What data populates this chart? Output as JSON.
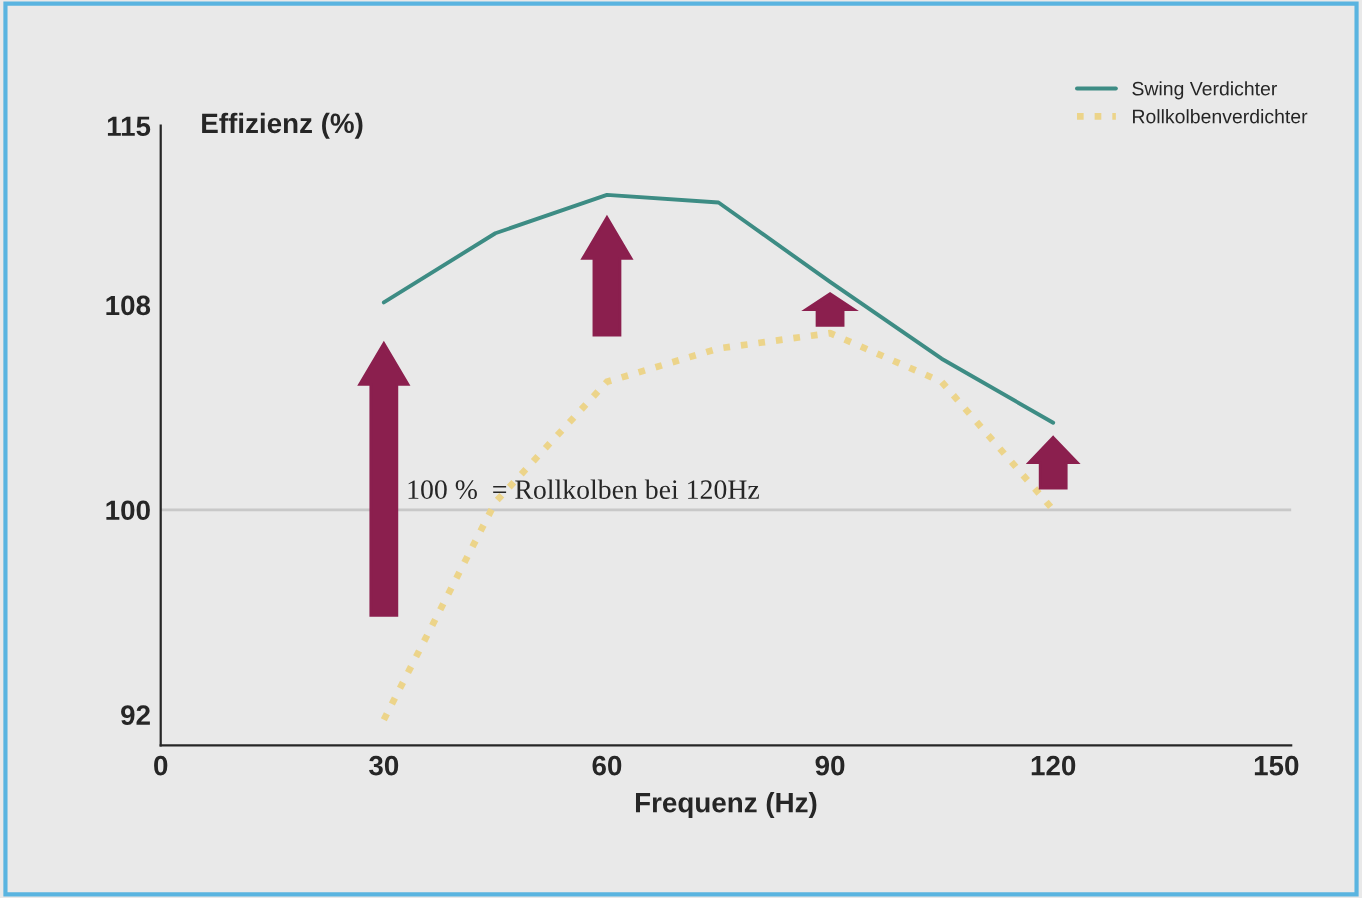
{
  "chart_data": {
    "type": "line",
    "ylabel": "Effizienz (%)",
    "xlabel": "Frequenz (Hz)",
    "x": [
      30,
      45,
      60,
      75,
      90,
      105,
      120
    ],
    "series": [
      {
        "name": "Swing Verdichter",
        "color": "#3d8c84",
        "values": [
          108.1,
          110.8,
          112.3,
          112,
          108.9,
          105.9,
          103.4
        ],
        "line_style": "solid"
      },
      {
        "name": "Rollkolbenverdichter",
        "color": "#ecd48a",
        "values": [
          91.8,
          100.3,
          105,
          106.3,
          106.9,
          105,
          100
        ],
        "line_style": "dotted"
      }
    ],
    "xlim": [
      0,
      152
    ],
    "xticks": [
      0,
      30,
      60,
      90,
      120,
      150
    ],
    "ylim": [
      90.8,
      115
    ],
    "yticks": [
      92,
      100,
      108,
      115
    ],
    "ref_lines": [
      {
        "axis": "y",
        "value": 100,
        "color": "#c8c8c8"
      }
    ],
    "annotations": [
      "100 %  = Rollkolben bei 120Hz"
    ],
    "legend": "top right",
    "grid": false
  }
}
